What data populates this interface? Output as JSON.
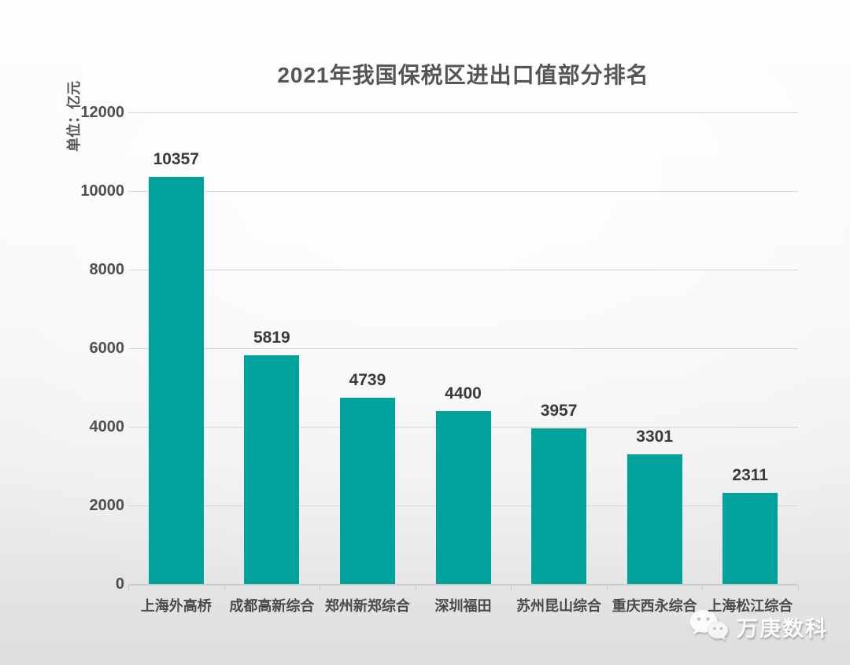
{
  "title": "2021年我国保税区进出口值部分排名",
  "unit_label": "单位：亿元",
  "watermark": {
    "icon": "wechat-icon",
    "text": "万庚数科"
  },
  "colors": {
    "bar": "#00a29c",
    "title_text": "#555555",
    "value_text": "#3a3a3a",
    "gridline": "#d7d7d7"
  },
  "chart_data": {
    "type": "bar",
    "title": "2021年我国保税区进出口值部分排名",
    "unit": "单位：亿元",
    "categories": [
      "上海外高桥",
      "成都高新综合",
      "郑州新郑综合",
      "深圳福田",
      "苏州昆山综合",
      "重庆西永综合",
      "上海松江综合"
    ],
    "values": [
      10357,
      5819,
      4739,
      4400,
      3957,
      3301,
      2311
    ],
    "xlabel": "",
    "ylabel": "单位：亿元",
    "ylim": [
      0,
      12000
    ],
    "yticks": [
      0,
      2000,
      4000,
      6000,
      8000,
      10000,
      12000
    ],
    "grid": true,
    "legend": "none",
    "bar_color": "#00a29c"
  }
}
